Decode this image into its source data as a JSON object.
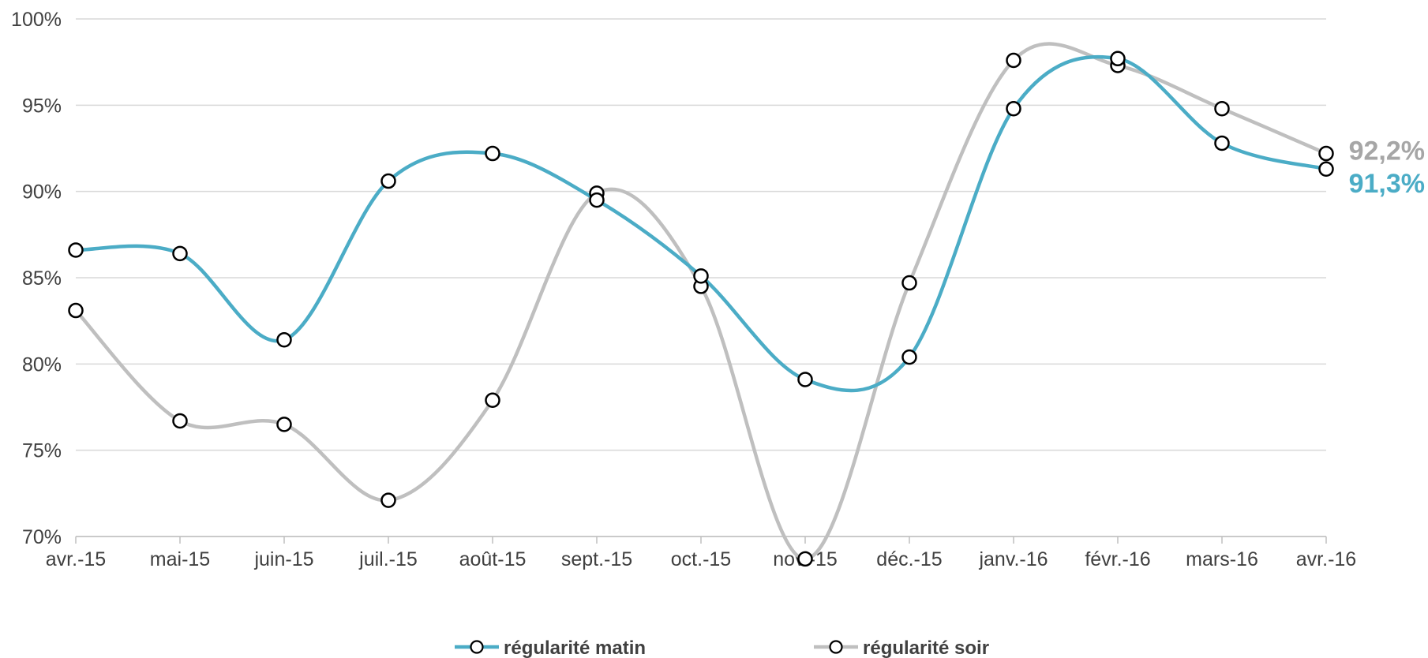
{
  "chart_data": {
    "type": "line",
    "smooth": true,
    "categories": [
      "avr.-15",
      "mai-15",
      "juin-15",
      "juil.-15",
      "août-15",
      "sept.-15",
      "oct.-15",
      "nov.-15",
      "déc.-15",
      "janv.-16",
      "févr.-16",
      "mars-16",
      "avr.-16"
    ],
    "y_ticks": [
      "70%",
      "75%",
      "80%",
      "85%",
      "90%",
      "95%",
      "100%"
    ],
    "ylim": [
      70,
      100
    ],
    "grid": true,
    "legend_position": "bottom",
    "series": [
      {
        "name": "régularité matin",
        "color": "#4BACC6",
        "values": [
          86.6,
          86.4,
          81.4,
          90.6,
          92.2,
          89.5,
          85.1,
          79.1,
          80.4,
          94.8,
          97.7,
          92.8,
          91.3
        ],
        "end_label": "91,3%"
      },
      {
        "name": "régularité soir",
        "color": "#BFBFBF",
        "values": [
          83.1,
          76.7,
          76.5,
          72.1,
          77.9,
          89.9,
          84.5,
          68.7,
          84.7,
          97.6,
          97.3,
          94.8,
          92.2
        ],
        "end_label": "92,2%"
      }
    ]
  }
}
